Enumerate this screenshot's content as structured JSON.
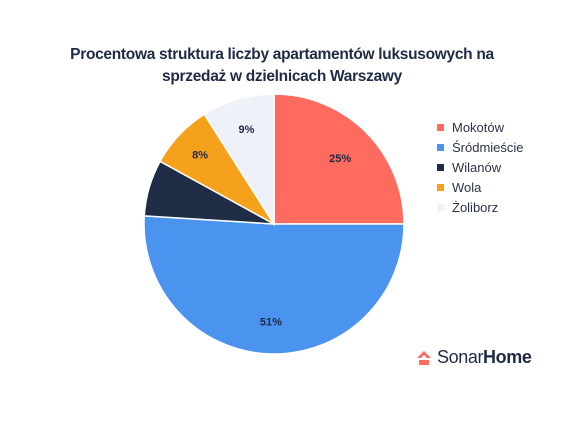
{
  "chart_data": {
    "type": "pie",
    "title_lines": [
      "Procentowa struktura liczby apartamentów luksusowych na",
      "sprzedaż w dzielnicach Warszawy"
    ],
    "categories": [
      "Mokotów",
      "Śródmieście",
      "Wilanów",
      "Wola",
      "Żoliborz"
    ],
    "values": [
      25,
      51,
      7,
      8,
      9
    ],
    "value_labels": [
      "25%",
      "51%",
      "7%",
      "8%",
      "9%"
    ],
    "colors": [
      "#ff6b5e",
      "#4a93ee",
      "#1e2d45",
      "#f5a11c",
      "#eef1f8"
    ],
    "legend_position": "right"
  },
  "brand": {
    "name_part1": "Sonar",
    "name_part2": "Home",
    "icon": "sonarhome-logo-icon",
    "icon_color": "#ff6b5e"
  }
}
